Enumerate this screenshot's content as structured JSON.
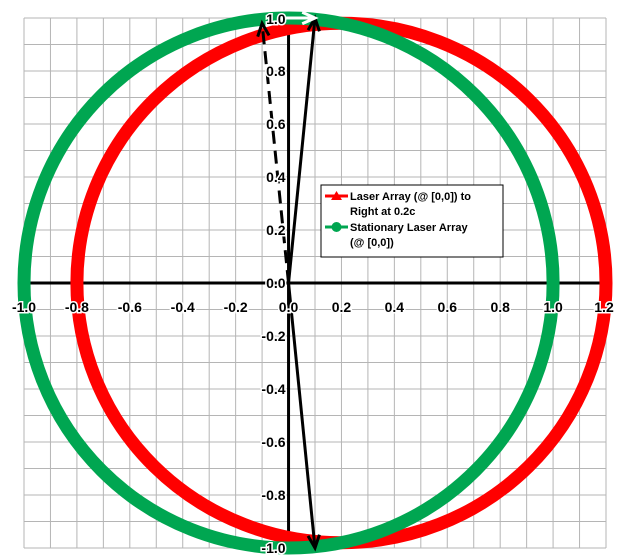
{
  "chart_data": {
    "type": "scatter",
    "title": "",
    "xlabel": "",
    "ylabel": "",
    "xlim": [
      -1.0,
      1.2
    ],
    "ylim": [
      -1.0,
      1.0
    ],
    "x_major_step": 0.2,
    "y_major_step": 0.2,
    "grid": true,
    "x_tick_labels": [
      "-1.0",
      "-0.8",
      "-0.6",
      "-0.4",
      "-0.2",
      "0.0",
      "0.2",
      "0.4",
      "0.6",
      "0.8",
      "1.0",
      "1.2"
    ],
    "y_tick_labels": [
      "-1.0",
      "-0.8",
      "-0.6",
      "-0.4",
      "-0.2",
      "0.0",
      "0.2",
      "0.4",
      "0.6",
      "0.8",
      "1.0"
    ],
    "legend": {
      "position": "center-right"
    },
    "series": [
      {
        "name": "Laser Array (@ [0,0]) to Right at 0.2c",
        "color": "#ff0000",
        "marker": "triangle",
        "shape": "ellipse",
        "center": [
          0.2,
          0.0
        ],
        "radius_x": 1.0,
        "radius_y": 0.98
      },
      {
        "name": "Stationary Laser Array (@ [0,0])",
        "color": "#00a651",
        "marker": "circle",
        "shape": "circle",
        "center": [
          0.0,
          0.0
        ],
        "radius_x": 1.0,
        "radius_y": 1.0
      }
    ],
    "arrows": [
      {
        "from": [
          0.0,
          0.0
        ],
        "to": [
          0.1,
          1.0
        ],
        "style": "solid"
      },
      {
        "from": [
          0.0,
          0.0
        ],
        "to": [
          -0.1,
          0.98
        ],
        "style": "dashed"
      },
      {
        "from": [
          0.0,
          0.0
        ],
        "to": [
          0.1,
          -1.0
        ],
        "style": "solid"
      }
    ],
    "top_arrow": {
      "from": [
        -0.03,
        1.0
      ],
      "to": [
        0.1,
        1.0
      ],
      "color": "#ffffff"
    }
  }
}
